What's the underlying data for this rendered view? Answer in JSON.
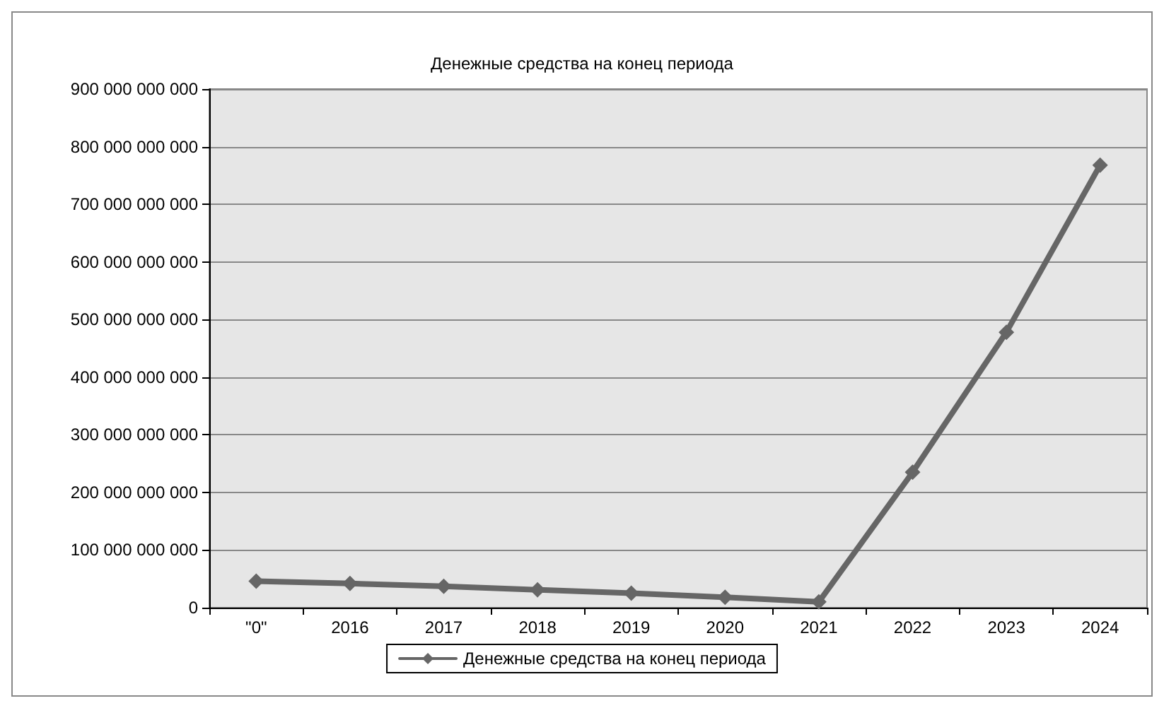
{
  "chart_data": {
    "type": "line",
    "title": "Денежные средства на конец периода",
    "categories": [
      "\"0\"",
      "2016",
      "2017",
      "2018",
      "2019",
      "2020",
      "2021",
      "2022",
      "2023",
      "2024"
    ],
    "series": [
      {
        "name": "Денежные средства на конец периода",
        "color": "#666666",
        "values": [
          46000000000,
          42000000000,
          37000000000,
          31000000000,
          25000000000,
          18000000000,
          10000000000,
          235000000000,
          478000000000,
          768000000000
        ]
      }
    ],
    "ylim": [
      0,
      900000000000
    ],
    "yticks": [
      {
        "value": 0,
        "label": "0"
      },
      {
        "value": 100000000000,
        "label": "100 000 000 000"
      },
      {
        "value": 200000000000,
        "label": "200 000 000 000"
      },
      {
        "value": 300000000000,
        "label": "300 000 000 000"
      },
      {
        "value": 400000000000,
        "label": "400 000 000 000"
      },
      {
        "value": 500000000000,
        "label": "500 000 000 000"
      },
      {
        "value": 600000000000,
        "label": "600 000 000 000"
      },
      {
        "value": 700000000000,
        "label": "700 000 000 000"
      },
      {
        "value": 800000000000,
        "label": "800 000 000 000"
      },
      {
        "value": 900000000000,
        "label": "900 000 000 000"
      }
    ],
    "grid": "y",
    "legend": "bottom",
    "marker": "diamond",
    "line_style": "solid"
  }
}
